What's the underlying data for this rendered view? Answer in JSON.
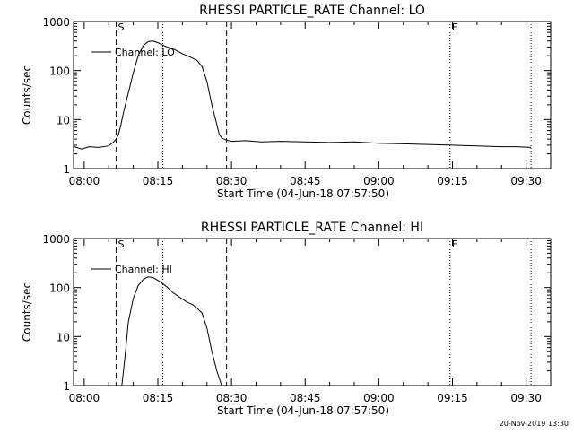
{
  "chart_data": [
    {
      "type": "line",
      "title": "RHESSI PARTICLE_RATE Channel: LO",
      "xlabel": "Start Time (04-Jun-18 07:57:50)",
      "ylabel": "Counts/sec",
      "y_scale": "log",
      "ylim": [
        1,
        1000
      ],
      "xlim": [
        "07:57:50",
        "09:35:00"
      ],
      "x_ticks": [
        "08:00",
        "08:15",
        "08:30",
        "08:45",
        "09:00",
        "09:15",
        "09:30"
      ],
      "y_ticks": [
        "1",
        "10",
        "100",
        "1000"
      ],
      "legend": {
        "entries": [
          "Channel: LO"
        ],
        "placement": "upper-left"
      },
      "markers": [
        {
          "label": "S",
          "x": "08:06:30",
          "style": "dashed"
        },
        {
          "label": "",
          "x": "08:16:00",
          "style": "dotted"
        },
        {
          "label": "",
          "x": "08:29:00",
          "style": "dashed"
        },
        {
          "label": "E",
          "x": "09:14:30",
          "style": "dotted"
        },
        {
          "label": "",
          "x": "09:31:00",
          "style": "dotted"
        }
      ],
      "series": [
        {
          "name": "Channel: LO",
          "x": [
            "07:58:00",
            "07:59:30",
            "08:01:00",
            "08:03:00",
            "08:05:00",
            "08:06:00",
            "08:06:30",
            "08:07:00",
            "08:07:30",
            "08:08:00",
            "08:09:00",
            "08:10:00",
            "08:11:00",
            "08:12:00",
            "08:13:00",
            "08:14:00",
            "08:15:00",
            "08:16:00",
            "08:17:00",
            "08:18:00",
            "08:19:00",
            "08:20:00",
            "08:21:00",
            "08:22:00",
            "08:23:00",
            "08:24:00",
            "08:25:00",
            "08:26:00",
            "08:27:00",
            "08:27:30",
            "08:28:00",
            "08:29:00",
            "08:30:00",
            "08:33:00",
            "08:36:00",
            "08:40:00",
            "08:45:00",
            "08:50:00",
            "08:55:00",
            "09:00:00",
            "09:05:00",
            "09:10:00",
            "09:15:00",
            "09:20:00",
            "09:25:00",
            "09:28:00",
            "09:31:00"
          ],
          "y": [
            2.8,
            2.5,
            2.8,
            2.7,
            2.9,
            3.5,
            4,
            5,
            8,
            14,
            35,
            90,
            200,
            320,
            390,
            400,
            370,
            330,
            300,
            280,
            250,
            220,
            200,
            180,
            160,
            120,
            60,
            20,
            8,
            5,
            4.2,
            3.8,
            3.6,
            3.7,
            3.5,
            3.6,
            3.5,
            3.4,
            3.5,
            3.3,
            3.2,
            3.1,
            3.0,
            2.9,
            2.8,
            2.8,
            2.7
          ]
        }
      ]
    },
    {
      "type": "line",
      "title": "RHESSI PARTICLE_RATE Channel: HI",
      "xlabel": "Start Time (04-Jun-18 07:57:50)",
      "ylabel": "Counts/sec",
      "y_scale": "log",
      "ylim": [
        1,
        1000
      ],
      "xlim": [
        "07:57:50",
        "09:35:00"
      ],
      "x_ticks": [
        "08:00",
        "08:15",
        "08:30",
        "08:45",
        "09:00",
        "09:15",
        "09:30"
      ],
      "y_ticks": [
        "1",
        "10",
        "100",
        "1000"
      ],
      "legend": {
        "entries": [
          "Channel: HI"
        ],
        "placement": "upper-left"
      },
      "markers": [
        {
          "label": "S",
          "x": "08:06:30",
          "style": "dashed"
        },
        {
          "label": "",
          "x": "08:16:00",
          "style": "dotted"
        },
        {
          "label": "",
          "x": "08:29:00",
          "style": "dashed"
        },
        {
          "label": "E",
          "x": "09:14:30",
          "style": "dotted"
        },
        {
          "label": "",
          "x": "09:31:00",
          "style": "dotted"
        }
      ],
      "series": [
        {
          "name": "Channel: HI",
          "x": [
            "08:07:40",
            "08:08:00",
            "08:08:30",
            "08:09:00",
            "08:10:00",
            "08:11:00",
            "08:12:00",
            "08:13:00",
            "08:14:00",
            "08:15:00",
            "08:16:00",
            "08:17:00",
            "08:18:00",
            "08:19:00",
            "08:20:00",
            "08:21:00",
            "08:22:00",
            "08:23:00",
            "08:24:00",
            "08:25:00",
            "08:26:00",
            "08:27:00",
            "08:28:00"
          ],
          "y": [
            1,
            2,
            6,
            20,
            60,
            110,
            145,
            165,
            160,
            140,
            120,
            100,
            80,
            68,
            58,
            50,
            45,
            38,
            30,
            15,
            5,
            2,
            1
          ]
        }
      ]
    }
  ],
  "footer": {
    "timestamp": "20-Nov-2019 13:30"
  }
}
